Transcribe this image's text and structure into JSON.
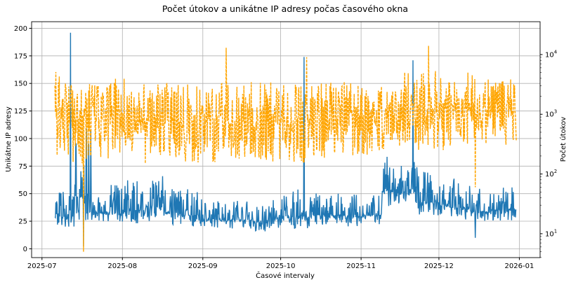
{
  "chart_data": {
    "type": "line",
    "title": "Počet útokov a unikátne IP adresy počas časového okna",
    "xlabel": "Časové intervaly",
    "ylabel_left": "Unikátne IP adresy",
    "ylabel_right": "Počet útokov",
    "x_ticks": [
      "2025-07",
      "2025-08",
      "2025-09",
      "2025-10",
      "2025-11",
      "2025-12",
      "2026-01"
    ],
    "xlim": [
      "2025-06-27",
      "2026-01-09"
    ],
    "ylim_left": [
      -8,
      206
    ],
    "yticks_left": [
      0,
      25,
      50,
      75,
      100,
      125,
      150,
      175,
      200
    ],
    "ylim_right_log10": [
      0.6,
      4.55
    ],
    "yticks_right": [
      "10^1",
      "10^2",
      "10^3",
      "10^4"
    ],
    "grid": true,
    "series_start": "2025-07-06",
    "series_end": "2025-12-31",
    "week_step_days": 7,
    "series": [
      {
        "name": "Unikátne IP adresy",
        "axis": "left",
        "color": "#1f77b4",
        "style": "solid",
        "weekly_low": [
          18,
          20,
          25,
          22,
          22,
          25,
          22,
          20,
          18,
          18,
          18,
          15,
          18,
          18,
          20,
          22,
          20,
          22,
          38,
          38,
          30,
          28,
          25,
          25,
          25,
          25
        ],
        "weekly_high": [
          55,
          110,
          50,
          60,
          65,
          70,
          60,
          55,
          45,
          45,
          45,
          42,
          50,
          55,
          55,
          50,
          50,
          50,
          85,
          80,
          70,
          65,
          60,
          55,
          60,
          60
        ],
        "spikes": [
          {
            "date": "2025-07-12",
            "value": 196
          },
          {
            "date": "2025-07-17",
            "value": 2
          },
          {
            "date": "2025-10-10",
            "value": 174
          },
          {
            "date": "2025-11-21",
            "value": 171
          },
          {
            "date": "2025-12-15",
            "value": 10
          }
        ]
      },
      {
        "name": "Počet útokov",
        "axis": "right",
        "color": "#ffa500",
        "style": "dashed",
        "weekly_low": [
          200,
          150,
          180,
          200,
          150,
          200,
          180,
          150,
          150,
          170,
          130,
          150,
          150,
          150,
          180,
          200,
          200,
          180,
          250,
          300,
          250,
          250,
          300,
          250,
          300,
          300
        ],
        "weekly_high": [
          8000,
          5000,
          3500,
          4000,
          4000,
          3500,
          3500,
          3500,
          4500,
          3500,
          3500,
          4000,
          3500,
          3500,
          4000,
          3500,
          4000,
          3500,
          4500,
          5000,
          6000,
          4500,
          5000,
          4500,
          4000,
          4000
        ],
        "spikes": [
          {
            "date": "2025-07-17",
            "value": 5
          },
          {
            "date": "2025-09-10",
            "value": 13000
          },
          {
            "date": "2025-10-11",
            "value": 9000
          },
          {
            "date": "2025-11-27",
            "value": 14000
          },
          {
            "date": "2025-12-15",
            "value": 60
          }
        ]
      }
    ]
  }
}
